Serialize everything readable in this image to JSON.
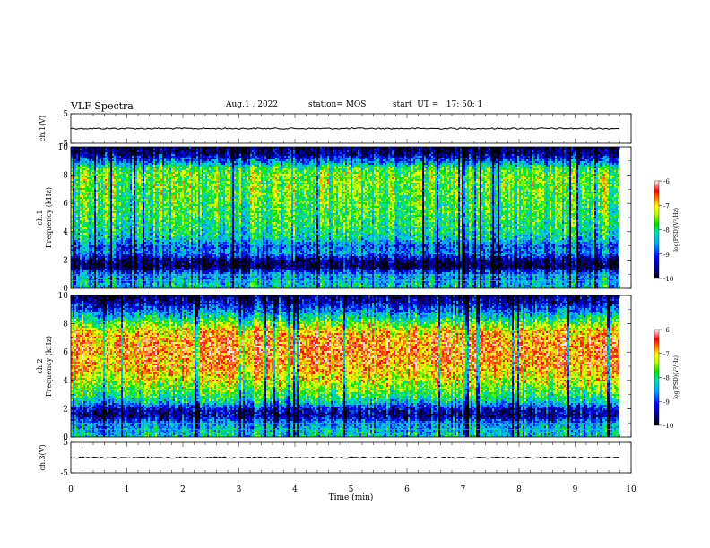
{
  "header": {
    "title": "VLF Spectra",
    "date": "Aug.1 , 2022",
    "station": "station= MOS",
    "start": "start  UT =   17: 50: 1"
  },
  "chart_data": [
    {
      "type": "line",
      "name": "ch1-waveform",
      "ylabel": "ch.1(V)",
      "ylim": [
        -5,
        5
      ],
      "yticks": [
        "5",
        "-5"
      ],
      "xlim": [
        0,
        10
      ],
      "baseline": 0
    },
    {
      "type": "heatmap",
      "name": "ch1-spectrogram",
      "ylabel_lines": [
        "ch.1",
        "Frequency (kHz)"
      ],
      "ylim": [
        0,
        10
      ],
      "yticks": [
        "0",
        "2",
        "4",
        "6",
        "8",
        "10"
      ],
      "xlim": [
        0,
        10
      ],
      "data_end_min": 9.8,
      "colorbar": {
        "label": "log(PSD)(V²/Hz)",
        "range": [
          -10,
          -6
        ],
        "ticks": [
          "-6",
          "-7",
          "-8",
          "-9",
          "-10"
        ]
      },
      "profile_freq_khz": [
        0,
        0.5,
        1,
        1.5,
        2,
        2.5,
        3,
        3.5,
        4,
        5,
        6,
        7,
        8,
        8.5,
        9,
        9.5,
        10
      ],
      "profile_level": [
        0.45,
        0.4,
        0.35,
        0.05,
        0.1,
        0.35,
        0.3,
        0.45,
        0.5,
        0.55,
        0.58,
        0.6,
        0.62,
        0.55,
        0.3,
        0.1,
        0.05
      ]
    },
    {
      "type": "heatmap",
      "name": "ch2-spectrogram",
      "ylabel_lines": [
        "ch.2",
        "Frequency (kHz)"
      ],
      "ylim": [
        0,
        10
      ],
      "yticks": [
        "0",
        "2",
        "4",
        "6",
        "8",
        "10"
      ],
      "xlim": [
        0,
        10
      ],
      "data_end_min": 9.8,
      "colorbar": {
        "label": "log(PSD)(V²/Hz)",
        "range": [
          -10,
          -6
        ],
        "ticks": [
          "-6",
          "-7",
          "-8",
          "-9",
          "-10"
        ]
      },
      "profile_freq_khz": [
        0,
        0.5,
        1,
        1.5,
        2,
        2.5,
        3,
        4,
        5,
        6,
        7,
        7.5,
        8,
        8.5,
        9,
        9.5,
        10
      ],
      "profile_level": [
        0.45,
        0.4,
        0.35,
        0.1,
        0.2,
        0.45,
        0.55,
        0.7,
        0.8,
        0.85,
        0.82,
        0.75,
        0.6,
        0.45,
        0.3,
        0.15,
        0.08
      ]
    },
    {
      "type": "line",
      "name": "ch3-waveform",
      "ylabel": "ch.3(V)",
      "ylim": [
        -5,
        5
      ],
      "yticks": [
        "5",
        "-5"
      ],
      "xlim": [
        0,
        10
      ],
      "baseline": 0
    }
  ],
  "xaxis": {
    "label": "Time (min)",
    "ticks": [
      "0",
      "1",
      "2",
      "3",
      "4",
      "5",
      "6",
      "7",
      "8",
      "9",
      "10"
    ]
  }
}
